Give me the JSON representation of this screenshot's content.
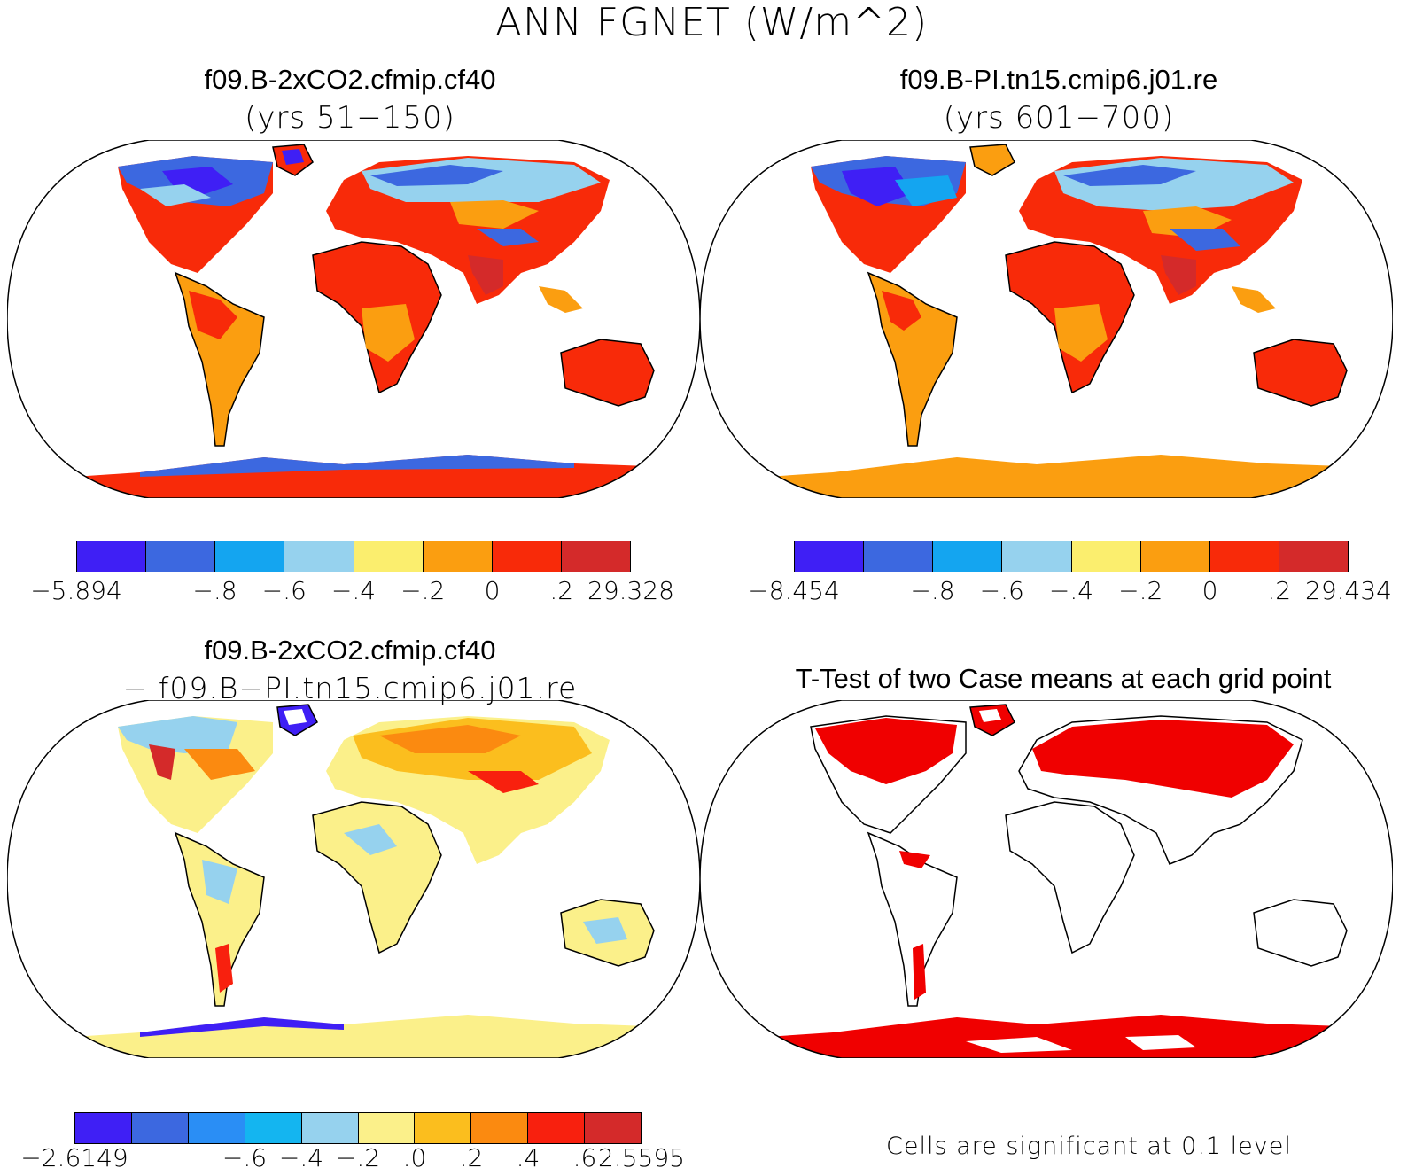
{
  "main_title": "ANN FGNET (W/m^2)",
  "panels": {
    "top_left": {
      "title": "f09.B-2xCO2.cfmip.cf40",
      "subtitle": "(yrs 51−150)"
    },
    "top_right": {
      "title": "f09.B-PI.tn15.cmip6.j01.re",
      "subtitle": "(yrs 601−700)"
    },
    "bottom_left": {
      "title": "f09.B-2xCO2.cfmip.cf40",
      "subtitle": "− f09.B−PI.tn15.cmip6.j01.re"
    },
    "bottom_right": {
      "title": "T-Test of two Case means at each grid point",
      "note": "Cells are significant at 0.1 level"
    }
  },
  "colorbars": {
    "top_left": {
      "colors": [
        "#3f1ff5",
        "#3c68e0",
        "#14a5f0",
        "#96d2ee",
        "#fbee6e",
        "#fb9e10",
        "#f82a09",
        "#d42a2a"
      ],
      "labels": [
        "−5.894",
        "−.8",
        "−.6",
        "−.4",
        "−.2",
        "0",
        ".2",
        "29.328"
      ]
    },
    "top_right": {
      "colors": [
        "#3f1ff5",
        "#3c68e0",
        "#14a5f0",
        "#96d2ee",
        "#fbee6e",
        "#fb9e10",
        "#f82a09",
        "#d42a2a"
      ],
      "labels": [
        "−8.454",
        "−.8",
        "−.6",
        "−.4",
        "−.2",
        "0",
        ".2",
        "29.434"
      ]
    },
    "bottom_left": {
      "colors": [
        "#3f1ff5",
        "#3c68e0",
        "#2a8ef5",
        "#14b5f0",
        "#96d2ee",
        "#fbf08a",
        "#fbbe1e",
        "#fb8a10",
        "#f8200e",
        "#d42a2a"
      ],
      "labels": [
        "−2.6149",
        "−.6",
        "−.4",
        "−.2",
        ".0",
        ".2",
        ".4",
        ".6",
        "2.5595"
      ]
    }
  },
  "map_colors": {
    "land_warm": "#f82a09",
    "land_orange": "#fb9e10",
    "land_yellow": "#fbee6e",
    "land_blue": "#3c68e0",
    "land_lightblue": "#96d2ee",
    "significant": "#f00000"
  }
}
